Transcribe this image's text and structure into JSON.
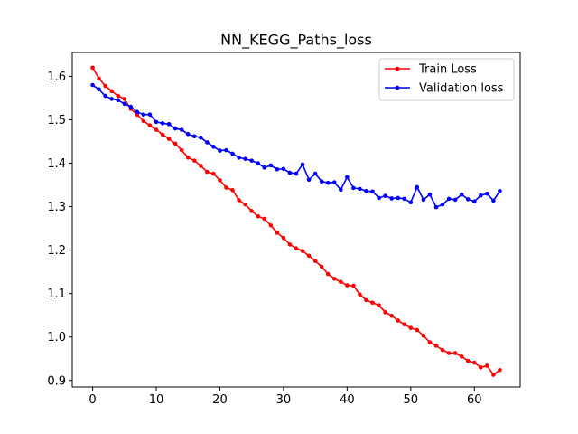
{
  "chart_data": {
    "type": "line",
    "title": "NN_KEGG_Paths_loss",
    "xlabel": "",
    "ylabel": "",
    "xlim": [
      -3.2,
      67.2
    ],
    "ylim": [
      0.885,
      1.655
    ],
    "x_ticks": [
      0,
      10,
      20,
      30,
      40,
      50,
      60
    ],
    "y_ticks": [
      0.9,
      1.0,
      1.1,
      1.2,
      1.3,
      1.4,
      1.5,
      1.6
    ],
    "grid": false,
    "legend_position": "top-right",
    "x": [
      0,
      1,
      2,
      3,
      4,
      5,
      6,
      7,
      8,
      9,
      10,
      11,
      12,
      13,
      14,
      15,
      16,
      17,
      18,
      19,
      20,
      21,
      22,
      23,
      24,
      25,
      26,
      27,
      28,
      29,
      30,
      31,
      32,
      33,
      34,
      35,
      36,
      37,
      38,
      39,
      40,
      41,
      42,
      43,
      44,
      45,
      46,
      47,
      48,
      49,
      50,
      51,
      52,
      53,
      54,
      55,
      56,
      57,
      58,
      59,
      60,
      61,
      62,
      63,
      64
    ],
    "series": [
      {
        "name": "Train Loss",
        "color": "#ff0000",
        "values": [
          1.62,
          1.595,
          1.578,
          1.566,
          1.555,
          1.548,
          1.525,
          1.512,
          1.497,
          1.487,
          1.477,
          1.466,
          1.456,
          1.445,
          1.43,
          1.413,
          1.406,
          1.394,
          1.38,
          1.376,
          1.361,
          1.344,
          1.338,
          1.315,
          1.305,
          1.29,
          1.278,
          1.272,
          1.257,
          1.24,
          1.228,
          1.213,
          1.204,
          1.198,
          1.187,
          1.175,
          1.162,
          1.145,
          1.134,
          1.127,
          1.119,
          1.118,
          1.098,
          1.085,
          1.079,
          1.073,
          1.057,
          1.049,
          1.038,
          1.029,
          1.021,
          1.016,
          1.003,
          0.988,
          0.98,
          0.97,
          0.963,
          0.963,
          0.955,
          0.945,
          0.941,
          0.93,
          0.934,
          0.913,
          0.924
        ]
      },
      {
        "name": "Validation loss",
        "color": "#0000ff",
        "values": [
          1.58,
          1.57,
          1.555,
          1.548,
          1.545,
          1.537,
          1.53,
          1.518,
          1.512,
          1.512,
          1.495,
          1.492,
          1.49,
          1.48,
          1.477,
          1.467,
          1.462,
          1.459,
          1.448,
          1.438,
          1.429,
          1.43,
          1.422,
          1.413,
          1.41,
          1.406,
          1.4,
          1.39,
          1.395,
          1.386,
          1.387,
          1.378,
          1.376,
          1.397,
          1.362,
          1.376,
          1.358,
          1.355,
          1.356,
          1.339,
          1.368,
          1.343,
          1.341,
          1.336,
          1.335,
          1.32,
          1.325,
          1.319,
          1.32,
          1.318,
          1.31,
          1.345,
          1.316,
          1.328,
          1.299,
          1.305,
          1.318,
          1.316,
          1.328,
          1.317,
          1.312,
          1.326,
          1.33,
          1.314,
          1.336
        ]
      }
    ]
  }
}
